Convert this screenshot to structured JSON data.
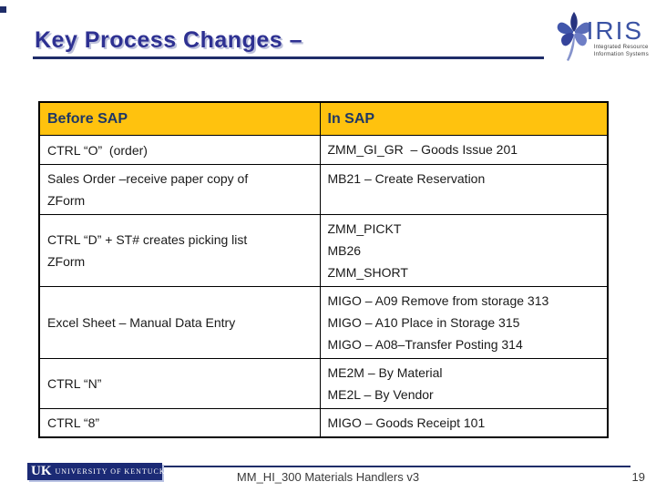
{
  "colors": {
    "header_gold": "#FFC20E",
    "navy": "#1F2D69",
    "title_blue": "#2E3192",
    "iris_blue": "#3B53A4",
    "cell_text": "#1A1A1A"
  },
  "header": {
    "title": "Key Process Changes –"
  },
  "iris_logo": {
    "name": "IRIS",
    "tagline1": "Integrated Resource",
    "tagline2": "Information Systems"
  },
  "table": {
    "headers": [
      "Before SAP",
      "In SAP"
    ],
    "rows": [
      {
        "before": [
          "CTRL “O”  (order)"
        ],
        "insap": [
          "ZMM_GI_GR  – Goods Issue 201"
        ]
      },
      {
        "before": [
          "Sales Order –receive paper copy of",
          "ZForm"
        ],
        "insap": [
          "MB21 – Create Reservation"
        ]
      },
      {
        "before": [
          "CTRL “D” + ST# creates picking list",
          "ZForm"
        ],
        "insap": [
          "ZMM_PICKT",
          "MB26",
          "ZMM_SHORT"
        ]
      },
      {
        "before": [
          "Excel Sheet – Manual Data Entry"
        ],
        "insap": [
          "MIGO – A09 Remove from storage 313",
          "MIGO – A10 Place in Storage 315",
          "MIGO – A08–Transfer Posting 314"
        ]
      },
      {
        "before": [
          "CTRL “N”"
        ],
        "insap": [
          "ME2M – By Material",
          "ME2L – By Vendor"
        ]
      },
      {
        "before": [
          "CTRL “8”"
        ],
        "insap": [
          "MIGO – Goods Receipt 101"
        ]
      }
    ]
  },
  "uk_logo": {
    "abbr": "UK",
    "name": "UNIVERSITY OF KENTUCKY"
  },
  "footer": {
    "text": "MM_HI_300 Materials Handlers v3",
    "page": "19"
  }
}
